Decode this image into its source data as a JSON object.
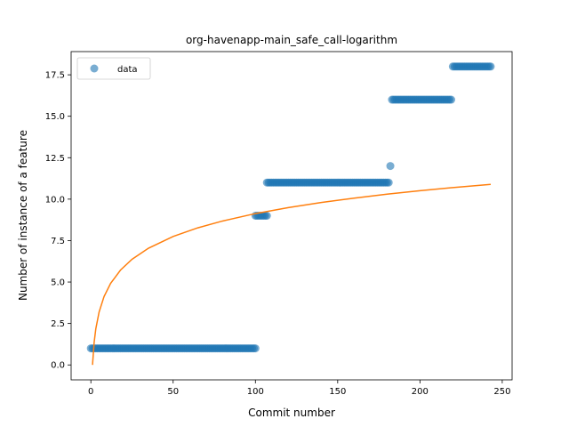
{
  "chart_data": {
    "type": "scatter",
    "title": "org-havenapp-main_safe_call-logarithm",
    "xlabel": "Commit number",
    "ylabel": "Number of instance of a feature",
    "xlim": [
      -12,
      256
    ],
    "ylim": [
      -0.9,
      18.9
    ],
    "xticks": [
      0,
      50,
      100,
      150,
      200,
      250
    ],
    "xtick_labels": [
      "0",
      "50",
      "100",
      "150",
      "200",
      "250"
    ],
    "yticks": [
      0,
      2.5,
      5,
      7.5,
      10,
      12.5,
      15,
      17.5
    ],
    "ytick_labels": [
      "0.0",
      "2.5",
      "5.0",
      "7.5",
      "10.0",
      "12.5",
      "15.0",
      "17.5"
    ],
    "legend": {
      "position": "upper-left",
      "entries": [
        "data"
      ]
    },
    "colors": {
      "data": "#1f77b4",
      "fit": "#ff7f0e"
    },
    "series": [
      {
        "name": "data",
        "kind": "scatter",
        "segments": [
          {
            "x_from": 0,
            "x_to": 100,
            "y": 1
          },
          {
            "x_from": 100,
            "x_to": 107,
            "y": 9
          },
          {
            "x_from": 107,
            "x_to": 181,
            "y": 11
          },
          {
            "x_from": 182,
            "x_to": 182,
            "y": 12
          },
          {
            "x_from": 183,
            "x_to": 219,
            "y": 16
          },
          {
            "x_from": 220,
            "x_to": 243,
            "y": 18
          }
        ]
      },
      {
        "kind": "line",
        "points": [
          [
            1,
            0
          ],
          [
            2,
            1.37
          ],
          [
            3,
            2.18
          ],
          [
            5,
            3.19
          ],
          [
            8,
            4.12
          ],
          [
            12,
            4.92
          ],
          [
            18,
            5.72
          ],
          [
            25,
            6.37
          ],
          [
            35,
            7.04
          ],
          [
            50,
            7.75
          ],
          [
            65,
            8.27
          ],
          [
            80,
            8.68
          ],
          [
            100,
            9.13
          ],
          [
            120,
            9.49
          ],
          [
            140,
            9.8
          ],
          [
            160,
            10.06
          ],
          [
            180,
            10.3
          ],
          [
            200,
            10.51
          ],
          [
            220,
            10.7
          ],
          [
            243,
            10.89
          ]
        ]
      }
    ]
  }
}
